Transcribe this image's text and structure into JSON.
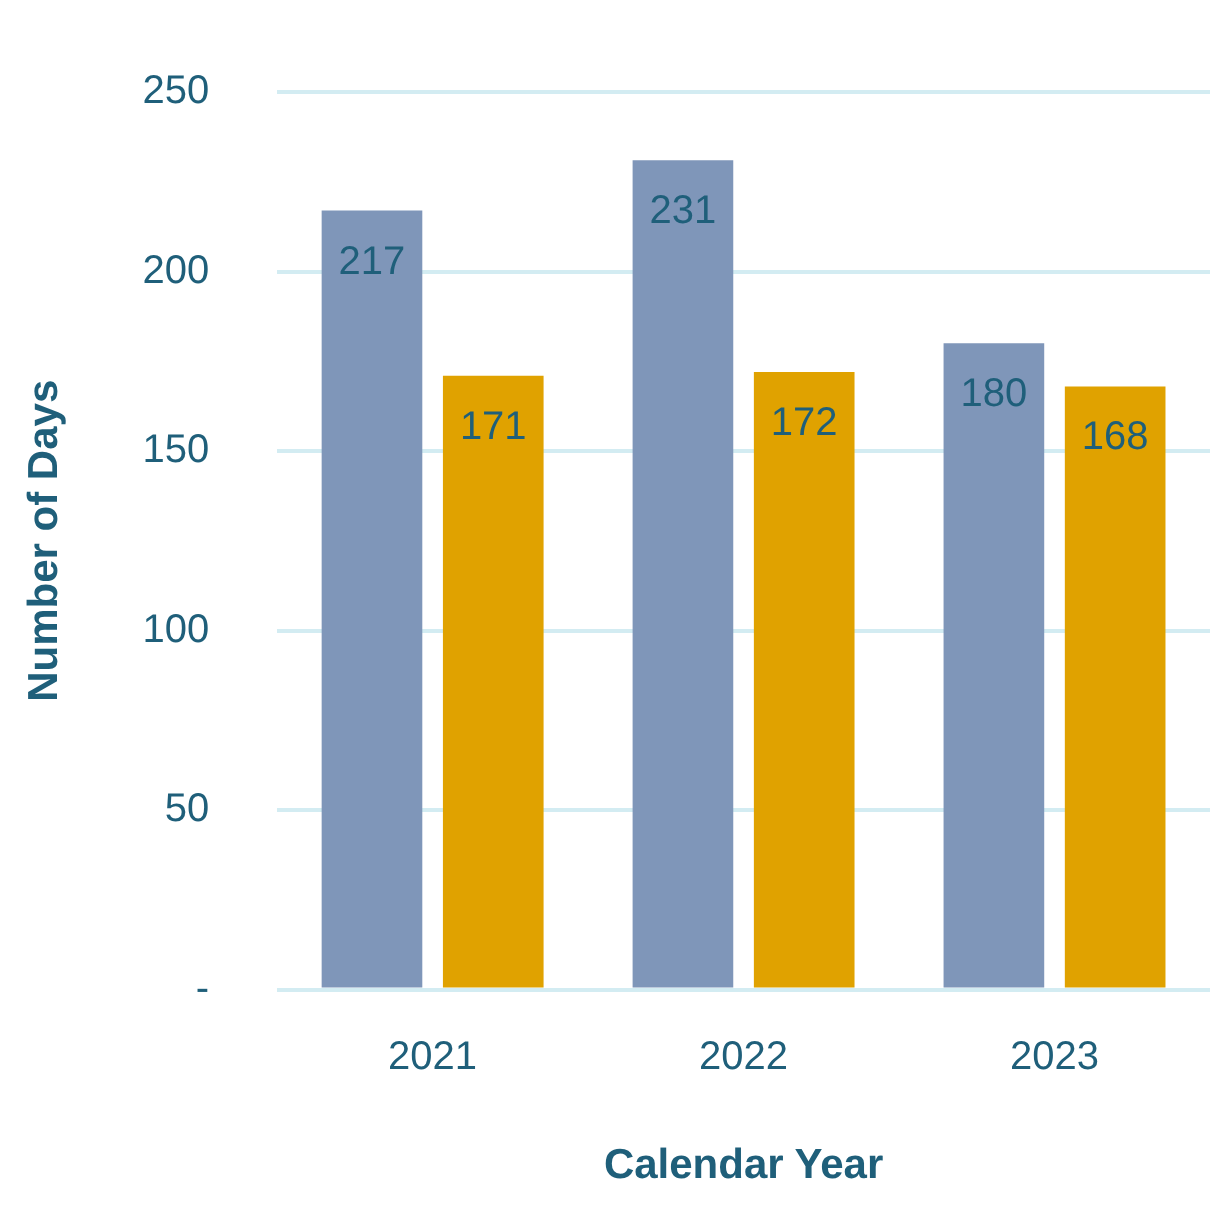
{
  "chart_data": {
    "type": "bar",
    "xlabel": "Calendar Year",
    "ylabel": "Number of Days",
    "categories": [
      "2021",
      "2022",
      "2023"
    ],
    "series": [
      {
        "color": "#7f96b9",
        "values": [
          217,
          231,
          180
        ]
      },
      {
        "color": "#e0a200",
        "values": [
          171,
          172,
          168
        ]
      }
    ],
    "ylim": [
      0,
      250
    ],
    "yticks": [
      {
        "value": 0,
        "label": "-"
      },
      50,
      100,
      150,
      200,
      250
    ],
    "grid": "y",
    "data_labels": true,
    "legend": false
  }
}
